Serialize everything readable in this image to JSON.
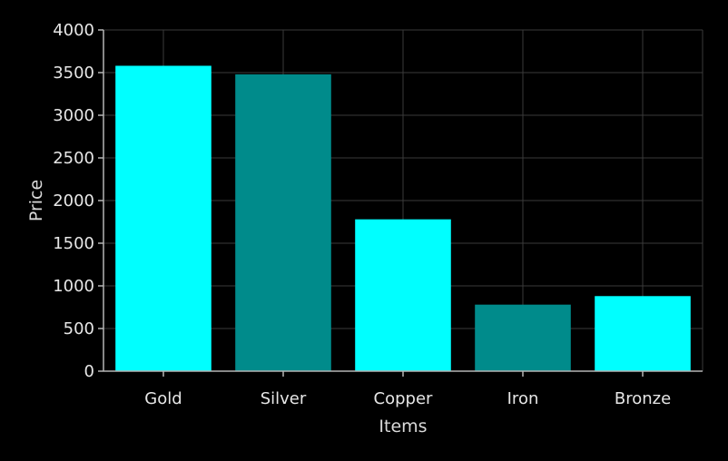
{
  "chart_data": {
    "type": "bar",
    "title": "",
    "xlabel": "Items",
    "ylabel": "Price",
    "categories": [
      "Gold",
      "Silver",
      "Copper",
      "Iron",
      "Bronze"
    ],
    "values": [
      3580,
      3480,
      1780,
      780,
      880
    ],
    "bar_colors": [
      "#00ffff",
      "#008b8b",
      "#00ffff",
      "#008b8b",
      "#00ffff"
    ],
    "ylim": [
      0,
      4000
    ],
    "yticks": [
      0,
      500,
      1000,
      1500,
      2000,
      2500,
      3000,
      3500,
      4000
    ],
    "grid": true,
    "background": "#000000",
    "legend": "none"
  }
}
